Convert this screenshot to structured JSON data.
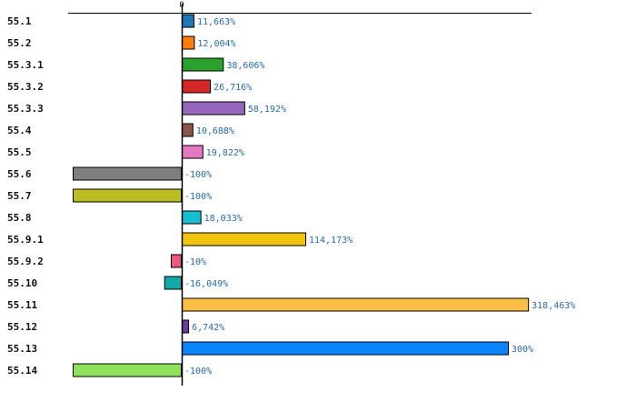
{
  "chart_data": {
    "type": "bar",
    "orientation": "horizontal",
    "title": "",
    "xlabel": "",
    "ylabel": "",
    "grid": false,
    "xlim": [
      -150,
      450
    ],
    "x_ticks": [
      {
        "value": 0,
        "label": "0"
      }
    ],
    "categories": [
      "55.1",
      "55.2",
      "55.3.1",
      "55.3.2",
      "55.3.3",
      "55.4",
      "55.5",
      "55.6",
      "55.7",
      "55.8",
      "55.9.1",
      "55.9.2",
      "55.10",
      "55.11",
      "55.12",
      "55.13",
      "55.14"
    ],
    "values": [
      11.663,
      12.004,
      38.606,
      26.716,
      58.192,
      10.688,
      19.822,
      -100,
      -100,
      18.033,
      114.173,
      -10,
      -16.049,
      318.463,
      6.742,
      300,
      -100
    ],
    "value_labels": [
      "11,663%",
      "12,004%",
      "38,606%",
      "26,716%",
      "58,192%",
      "10,688%",
      "19,822%",
      "-100%",
      "-100%",
      "18,033%",
      "114,173%",
      "-10%",
      "-16,049%",
      "318,463%",
      "6,742%",
      "300%",
      "-100%"
    ],
    "colors": [
      "#1f77b4",
      "#ff7f0e",
      "#2ca02c",
      "#d62728",
      "#9467bd",
      "#8c564b",
      "#e377c2",
      "#7f7f7f",
      "#bcbd22",
      "#17becf",
      "#f1c40f",
      "#f0567f",
      "#14a8a8",
      "#fbbf45",
      "#6a3d9a",
      "#0a84ff",
      "#8fe05a"
    ]
  }
}
